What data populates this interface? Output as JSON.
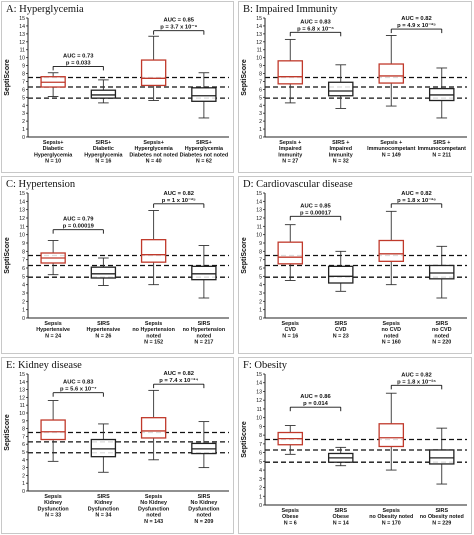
{
  "chart_data": [
    {
      "type": "box",
      "title": "A: Hyperglycemia",
      "ylabel": "SeptiScore",
      "ylim": [
        0,
        15
      ],
      "y_ticks": [
        0,
        1,
        2,
        3,
        4,
        5,
        6,
        7,
        8,
        9,
        10,
        11,
        12,
        13,
        14,
        15
      ],
      "reference_lines": [
        4.9,
        6.3,
        7.5
      ],
      "groups": [
        {
          "label_lines": [
            "Sepsis+",
            "Diabetic",
            "Hyperglycemia"
          ],
          "n": "N = 10",
          "type": "sepsis",
          "q1": 6.3,
          "median": 6.9,
          "q3": 7.6,
          "whisker_low": 5.1,
          "whisker_high": 8.1
        },
        {
          "label_lines": [
            "SIRS+",
            "Diabetic",
            "Hyperglycemia"
          ],
          "n": "N = 16",
          "type": "sirs",
          "q1": 4.9,
          "median": 5.3,
          "q3": 5.9,
          "whisker_low": 4.3,
          "whisker_high": 7.2
        },
        {
          "label_lines": [
            "Sepsis+",
            "Hyperglycemia",
            "Diabetes not noted"
          ],
          "n": "N = 40",
          "type": "sepsis",
          "q1": 6.5,
          "median": 7.4,
          "q3": 9.7,
          "whisker_low": 4.6,
          "whisker_high": 12.7
        },
        {
          "label_lines": [
            "SIRS+",
            "Hyperglycemia",
            "Diabetes not noted"
          ],
          "n": "N = 62",
          "type": "sirs",
          "q1": 4.5,
          "median": 5.2,
          "q3": 6.2,
          "whisker_low": 2.4,
          "whisker_high": 8.1
        }
      ],
      "annotations": [
        {
          "lines": [
            "AUC = 0.73",
            "p = 0.033"
          ],
          "from": 0,
          "to": 1,
          "y": 8.9
        },
        {
          "lines": [
            "AUC = 0.85",
            "p = 3.7 x 10⁻⁹"
          ],
          "from": 2,
          "to": 3,
          "y": 13.4
        }
      ]
    },
    {
      "type": "box",
      "title": "B: Impaired Immunity",
      "ylabel": "SeptiScore",
      "ylim": [
        0,
        15
      ],
      "y_ticks": [
        0,
        1,
        2,
        3,
        4,
        5,
        6,
        7,
        8,
        9,
        10,
        11,
        12,
        13,
        14,
        15
      ],
      "reference_lines": [
        4.9,
        6.3,
        7.5
      ],
      "groups": [
        {
          "label_lines": [
            "Sepsis +",
            "Impaired",
            "Immunity"
          ],
          "n": "N = 27",
          "type": "sepsis",
          "q1": 6.7,
          "median": 7.6,
          "q3": 9.6,
          "whisker_low": 4.3,
          "whisker_high": 12.3
        },
        {
          "label_lines": [
            "SIRS +",
            "Impaired",
            "Immunity"
          ],
          "n": "N = 32",
          "type": "sirs",
          "q1": 5.2,
          "median": 5.8,
          "q3": 6.9,
          "whisker_low": 3.6,
          "whisker_high": 9.1
        },
        {
          "label_lines": [
            "Sepsis +",
            "Immunocompetant"
          ],
          "n": "N = 149",
          "type": "sepsis",
          "q1": 6.8,
          "median": 7.7,
          "q3": 9.2,
          "whisker_low": 3.9,
          "whisker_high": 12.8
        },
        {
          "label_lines": [
            "SIRS +",
            "Immunocompetant"
          ],
          "n": "N = 211",
          "type": "sirs",
          "q1": 4.6,
          "median": 5.3,
          "q3": 6.1,
          "whisker_low": 2.4,
          "whisker_high": 8.7
        }
      ],
      "annotations": [
        {
          "lines": [
            "AUC = 0.83",
            "p = 6.8 x 10⁻⁶"
          ],
          "from": 0,
          "to": 1,
          "y": 13.2
        },
        {
          "lines": [
            "AUC = 0.82",
            "p = 4.9 x 10⁻²⁵"
          ],
          "from": 2,
          "to": 3,
          "y": 13.6
        }
      ]
    },
    {
      "type": "box",
      "title": "C: Hypertension",
      "ylabel": "SeptiScore",
      "ylim": [
        0,
        15
      ],
      "y_ticks": [
        0,
        1,
        2,
        3,
        4,
        5,
        6,
        7,
        8,
        9,
        10,
        11,
        12,
        13,
        14,
        15
      ],
      "reference_lines": [
        4.9,
        6.3,
        7.5
      ],
      "groups": [
        {
          "label_lines": [
            "Sepsis",
            "Hypertensive"
          ],
          "n": "N = 24",
          "type": "sepsis",
          "q1": 6.6,
          "median": 7.2,
          "q3": 7.8,
          "whisker_low": 5.2,
          "whisker_high": 9.3
        },
        {
          "label_lines": [
            "SIRS",
            "Hypertensive"
          ],
          "n": "N = 26",
          "type": "sirs",
          "q1": 4.8,
          "median": 5.3,
          "q3": 6.1,
          "whisker_low": 3.9,
          "whisker_high": 7.2
        },
        {
          "label_lines": [
            "Sepsis",
            "no Hypertension",
            "noted"
          ],
          "n": "N = 152",
          "type": "sepsis",
          "q1": 6.7,
          "median": 7.6,
          "q3": 9.4,
          "whisker_low": 4.0,
          "whisker_high": 12.9
        },
        {
          "label_lines": [
            "SIRS",
            "no Hypertension",
            "noted"
          ],
          "n": "N = 217",
          "type": "sirs",
          "q1": 4.6,
          "median": 5.3,
          "q3": 6.2,
          "whisker_low": 2.4,
          "whisker_high": 8.7
        }
      ],
      "annotations": [
        {
          "lines": [
            "AUC = 0.79",
            "p = 0.00019"
          ],
          "from": 0,
          "to": 1,
          "y": 10.6
        },
        {
          "lines": [
            "AUC = 0.82",
            "p = 1 x 10⁻²⁵"
          ],
          "from": 2,
          "to": 3,
          "y": 13.7
        }
      ]
    },
    {
      "type": "box",
      "title": "D: Cardiovascular disease",
      "ylabel": "SeptiScore",
      "ylim": [
        0,
        15
      ],
      "y_ticks": [
        0,
        1,
        2,
        3,
        4,
        5,
        6,
        7,
        8,
        9,
        10,
        11,
        12,
        13,
        14,
        15
      ],
      "reference_lines": [
        4.9,
        6.3,
        7.5
      ],
      "groups": [
        {
          "label_lines": [
            "Sepsis",
            "CVD"
          ],
          "n": "N = 16",
          "type": "sepsis",
          "q1": 6.5,
          "median": 7.3,
          "q3": 9.1,
          "whisker_low": 4.5,
          "whisker_high": 11.2
        },
        {
          "label_lines": [
            "SIRS",
            "CVD"
          ],
          "n": "N = 23",
          "type": "sirs",
          "q1": 4.2,
          "median": 5.0,
          "q3": 6.2,
          "whisker_low": 3.2,
          "whisker_high": 8.0
        },
        {
          "label_lines": [
            "Sepsis",
            "no CVD",
            "noted"
          ],
          "n": "N = 160",
          "type": "sepsis",
          "q1": 6.8,
          "median": 7.7,
          "q3": 9.3,
          "whisker_low": 4.0,
          "whisker_high": 12.8
        },
        {
          "label_lines": [
            "SIRS",
            "no CVD",
            "noted"
          ],
          "n": "N = 220",
          "type": "sirs",
          "q1": 4.7,
          "median": 5.4,
          "q3": 6.3,
          "whisker_low": 2.4,
          "whisker_high": 8.6
        }
      ],
      "annotations": [
        {
          "lines": [
            "AUC = 0.85",
            "p = 0.00017"
          ],
          "from": 0,
          "to": 1,
          "y": 12.2
        },
        {
          "lines": [
            "AUC = 0.82",
            "p = 1.8 x 10⁻²⁶"
          ],
          "from": 2,
          "to": 3,
          "y": 13.7
        }
      ]
    },
    {
      "type": "box",
      "title": "E: Kidney disease",
      "ylabel": "SeptiScore",
      "ylim": [
        0,
        15
      ],
      "y_ticks": [
        0,
        1,
        2,
        3,
        4,
        5,
        6,
        7,
        8,
        9,
        10,
        11,
        12,
        13,
        14,
        15
      ],
      "reference_lines": [
        4.9,
        6.3,
        7.5
      ],
      "groups": [
        {
          "label_lines": [
            "Sepsis",
            "Kidney",
            "Dysfunction"
          ],
          "n": "N = 33",
          "type": "sepsis",
          "q1": 6.6,
          "median": 7.6,
          "q3": 9.1,
          "whisker_low": 3.8,
          "whisker_high": 11.6
        },
        {
          "label_lines": [
            "SIRS",
            "Kidney",
            "Dysfunction"
          ],
          "n": "N = 34",
          "type": "sirs",
          "q1": 4.4,
          "median": 5.4,
          "q3": 6.6,
          "whisker_low": 2.4,
          "whisker_high": 8.6
        },
        {
          "label_lines": [
            "Sepsis",
            "No Kidney",
            "Dysfunction",
            "noted"
          ],
          "n": "N = 143",
          "type": "sepsis",
          "q1": 6.8,
          "median": 7.7,
          "q3": 9.4,
          "whisker_low": 4.0,
          "whisker_high": 12.9
        },
        {
          "label_lines": [
            "SIRS",
            "No Kidney",
            "Dysfunction",
            "noted"
          ],
          "n": "N = 209",
          "type": "sirs",
          "q1": 4.8,
          "median": 5.4,
          "q3": 6.1,
          "whisker_low": 3.0,
          "whisker_high": 8.9
        }
      ],
      "annotations": [
        {
          "lines": [
            "AUC = 0.83",
            "p = 5.6 x 10⁻⁷"
          ],
          "from": 0,
          "to": 1,
          "y": 12.6
        },
        {
          "lines": [
            "AUC = 0.82",
            "p = 7.4 x 10⁻²⁴"
          ],
          "from": 2,
          "to": 3,
          "y": 13.7
        }
      ]
    },
    {
      "type": "box",
      "title": "F: Obesity",
      "ylabel": "SeptiScore",
      "ylim": [
        0,
        15
      ],
      "y_ticks": [
        0,
        1,
        2,
        3,
        4,
        5,
        6,
        7,
        8,
        9,
        10,
        11,
        12,
        13,
        14,
        15
      ],
      "reference_lines": [
        4.9,
        6.3,
        7.5
      ],
      "groups": [
        {
          "label_lines": [
            "Sepsis",
            "Obese"
          ],
          "n": "N = 6",
          "type": "sepsis",
          "q1": 6.9,
          "median": 7.6,
          "q3": 8.3,
          "whisker_low": 5.8,
          "whisker_high": 9.1
        },
        {
          "label_lines": [
            "SIRS",
            "Obese"
          ],
          "n": "N = 14",
          "type": "sirs",
          "q1": 4.9,
          "median": 5.4,
          "q3": 5.9,
          "whisker_low": 4.5,
          "whisker_high": 6.6
        },
        {
          "label_lines": [
            "Sepsis",
            "no Obesity noted"
          ],
          "n": "N = 170",
          "type": "sepsis",
          "q1": 6.7,
          "median": 7.7,
          "q3": 9.3,
          "whisker_low": 4.0,
          "whisker_high": 12.8
        },
        {
          "label_lines": [
            "SIRS",
            "no Obesity noted"
          ],
          "n": "N = 229",
          "type": "sirs",
          "q1": 4.7,
          "median": 5.4,
          "q3": 6.3,
          "whisker_low": 2.4,
          "whisker_high": 8.8
        }
      ],
      "annotations": [
        {
          "lines": [
            "AUC = 0.86",
            "p = 0.014"
          ],
          "from": 0,
          "to": 1,
          "y": 11.2
        },
        {
          "lines": [
            "AUC = 0.82",
            "p = 1.8 x 10⁻²⁶"
          ],
          "from": 2,
          "to": 3,
          "y": 13.7
        }
      ]
    }
  ],
  "colors": {
    "sepsis": "#c0392b",
    "sirs": "#222222",
    "axis": "#222222",
    "reference": "#111111"
  }
}
